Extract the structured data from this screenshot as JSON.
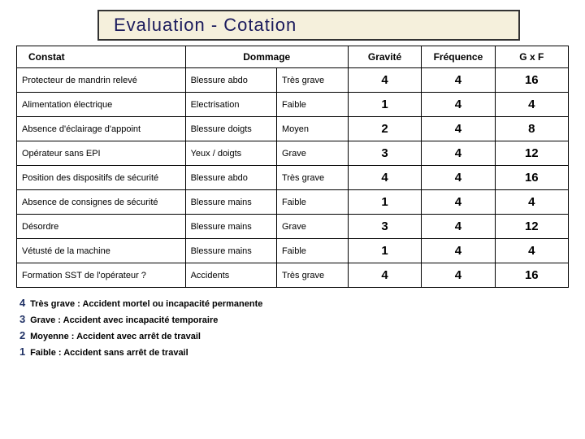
{
  "title": "Evaluation -  Cotation",
  "headers": {
    "constat": "Constat",
    "dommage": "Dommage",
    "gravite": "Gravité",
    "frequence": "Fréquence",
    "gxf": "G x F"
  },
  "rows": [
    {
      "constat": "Protecteur de mandrin relevé",
      "dommage": "Blessure abdo",
      "niveau": "Très grave",
      "g": "4",
      "f": "4",
      "gxf": "16"
    },
    {
      "constat": "Alimentation électrique",
      "dommage": "Electrisation",
      "niveau": "Faible",
      "g": "1",
      "f": "4",
      "gxf": "4"
    },
    {
      "constat": "Absence d'éclairage d'appoint",
      "dommage": "Blessure doigts",
      "niveau": "Moyen",
      "g": "2",
      "f": "4",
      "gxf": "8"
    },
    {
      "constat": "Opérateur sans EPI",
      "dommage": "Yeux / doigts",
      "niveau": "Grave",
      "g": "3",
      "f": "4",
      "gxf": "12"
    },
    {
      "constat": "Position des dispositifs de sécurité",
      "dommage": "Blessure abdo",
      "niveau": "Très grave",
      "g": "4",
      "f": "4",
      "gxf": "16"
    },
    {
      "constat": "Absence de consignes de sécurité",
      "dommage": "Blessure mains",
      "niveau": "Faible",
      "g": "1",
      "f": "4",
      "gxf": "4"
    },
    {
      "constat": "Désordre",
      "dommage": "Blessure mains",
      "niveau": "Grave",
      "g": "3",
      "f": "4",
      "gxf": "12"
    },
    {
      "constat": "Vétusté de la machine",
      "dommage": "Blessure mains",
      "niveau": "Faible",
      "g": "1",
      "f": "4",
      "gxf": "4"
    },
    {
      "constat": "Formation SST de l'opérateur ?",
      "dommage": "Accidents",
      "niveau": "Très grave",
      "g": "4",
      "f": "4",
      "gxf": "16"
    }
  ],
  "legend": [
    {
      "num": "4",
      "text": "Très grave : Accident mortel ou incapacité permanente"
    },
    {
      "num": "3",
      "text": "Grave : Accident avec incapacité temporaire"
    },
    {
      "num": "2",
      "text": "Moyenne : Accident avec arrêt de travail"
    },
    {
      "num": "1",
      "text": "Faible : Accident sans arrêt de travail"
    }
  ],
  "colors": {
    "title_bg": "#f5f0dc",
    "title_border": "#333333",
    "title_text": "#1a1a5c",
    "cell_border": "#000000",
    "legend_num": "#223366"
  }
}
